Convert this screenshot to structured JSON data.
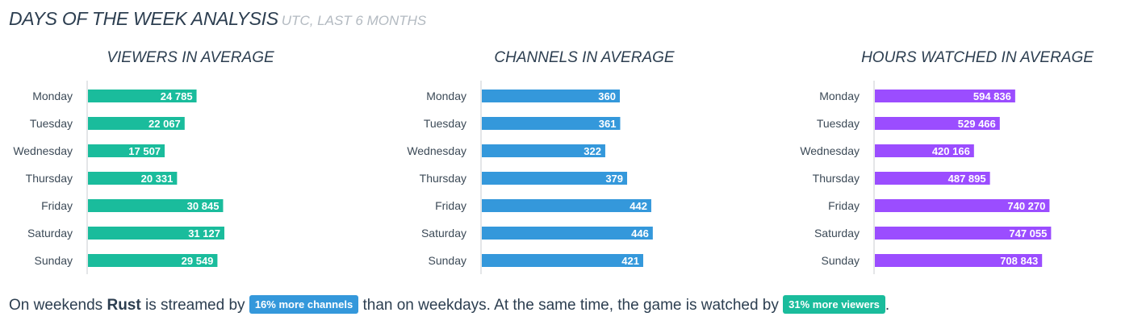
{
  "header": {
    "title": "DAYS OF THE WEEK ANALYSIS",
    "subtitle": "UTC, LAST 6 MONTHS"
  },
  "chart_data": [
    {
      "type": "bar",
      "orientation": "horizontal",
      "title": "VIEWERS IN AVERAGE",
      "categories": [
        "Monday",
        "Tuesday",
        "Wednesday",
        "Thursday",
        "Friday",
        "Saturday",
        "Sunday"
      ],
      "values": [
        24785,
        22067,
        17507,
        20331,
        30845,
        31127,
        29549
      ],
      "value_labels": [
        "24 785",
        "22 067",
        "17 507",
        "20 331",
        "30 845",
        "31 127",
        "29 549"
      ],
      "color": "#1abc9c",
      "xlim": [
        0,
        70000
      ],
      "grid": false
    },
    {
      "type": "bar",
      "orientation": "horizontal",
      "title": "CHANNELS IN AVERAGE",
      "categories": [
        "Monday",
        "Tuesday",
        "Wednesday",
        "Thursday",
        "Friday",
        "Saturday",
        "Sunday"
      ],
      "values": [
        360,
        361,
        322,
        379,
        442,
        446,
        421
      ],
      "value_labels": [
        "360",
        "361",
        "322",
        "379",
        "442",
        "446",
        "421"
      ],
      "color": "#3498db",
      "xlim": [
        0,
        800
      ],
      "grid": false
    },
    {
      "type": "bar",
      "orientation": "horizontal",
      "title": "HOURS WATCHED IN AVERAGE",
      "categories": [
        "Monday",
        "Tuesday",
        "Wednesday",
        "Thursday",
        "Friday",
        "Saturday",
        "Sunday"
      ],
      "values": [
        594836,
        529466,
        420166,
        487895,
        740270,
        747055,
        708843
      ],
      "value_labels": [
        "594 836",
        "529 466",
        "420 166",
        "487 895",
        "740 270",
        "747 055",
        "708 843"
      ],
      "color": "#9b4dff",
      "xlim": [
        0,
        1300000
      ],
      "grid": false
    }
  ],
  "summary": {
    "text_1": "On weekends ",
    "game": "Rust",
    "text_2": " is streamed by ",
    "badge_channels": "16% more channels",
    "text_3": " than on weekdays. At the same time, the game is watched by ",
    "badge_viewers": "31% more viewers",
    "text_4": ".",
    "colors": {
      "channels_badge": "#3498db",
      "viewers_badge": "#1abc9c"
    }
  }
}
